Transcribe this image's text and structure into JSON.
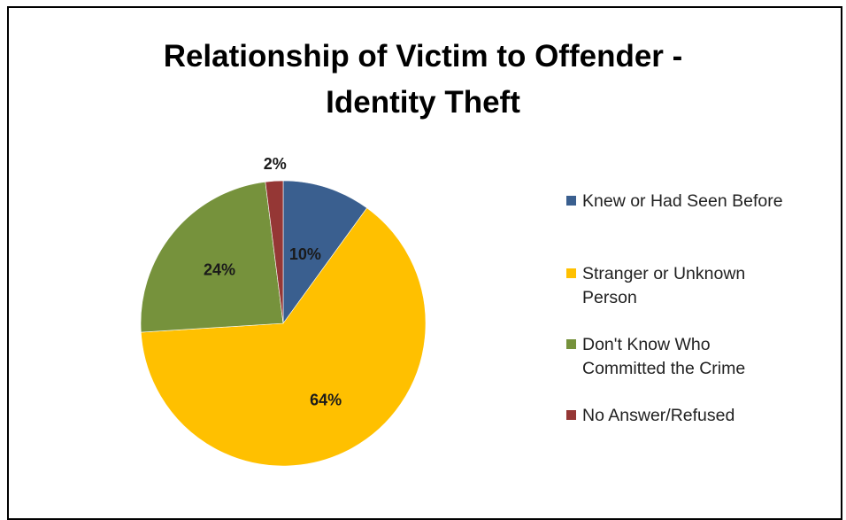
{
  "chart_data": {
    "type": "pie",
    "title_lines": [
      "Relationship of Victim to Offender -",
      "Identity Theft"
    ],
    "slices": [
      {
        "label": "Knew or Had Seen Before",
        "value": 10,
        "display": "10%",
        "color": "#3A5F8F"
      },
      {
        "label": "Stranger or Unknown Person",
        "value": 64,
        "display": "64%",
        "color": "#FFC000"
      },
      {
        "label": "Don't Know Who Committed the Crime",
        "value": 24,
        "display": "24%",
        "color": "#76923C"
      },
      {
        "label": "No Answer/Refused",
        "value": 2,
        "display": "2%",
        "color": "#953735"
      }
    ],
    "legend_placement": "right",
    "legend": [
      {
        "lines": [
          "Knew or Had Seen Before"
        ],
        "color": "#3A5F8F"
      },
      {
        "lines": [
          "Stranger or Unknown",
          "Person"
        ],
        "color": "#FFC000"
      },
      {
        "lines": [
          "Don't Know Who",
          "Committed the Crime"
        ],
        "color": "#76923C"
      },
      {
        "lines": [
          "No Answer/Refused"
        ],
        "color": "#953735"
      }
    ]
  }
}
